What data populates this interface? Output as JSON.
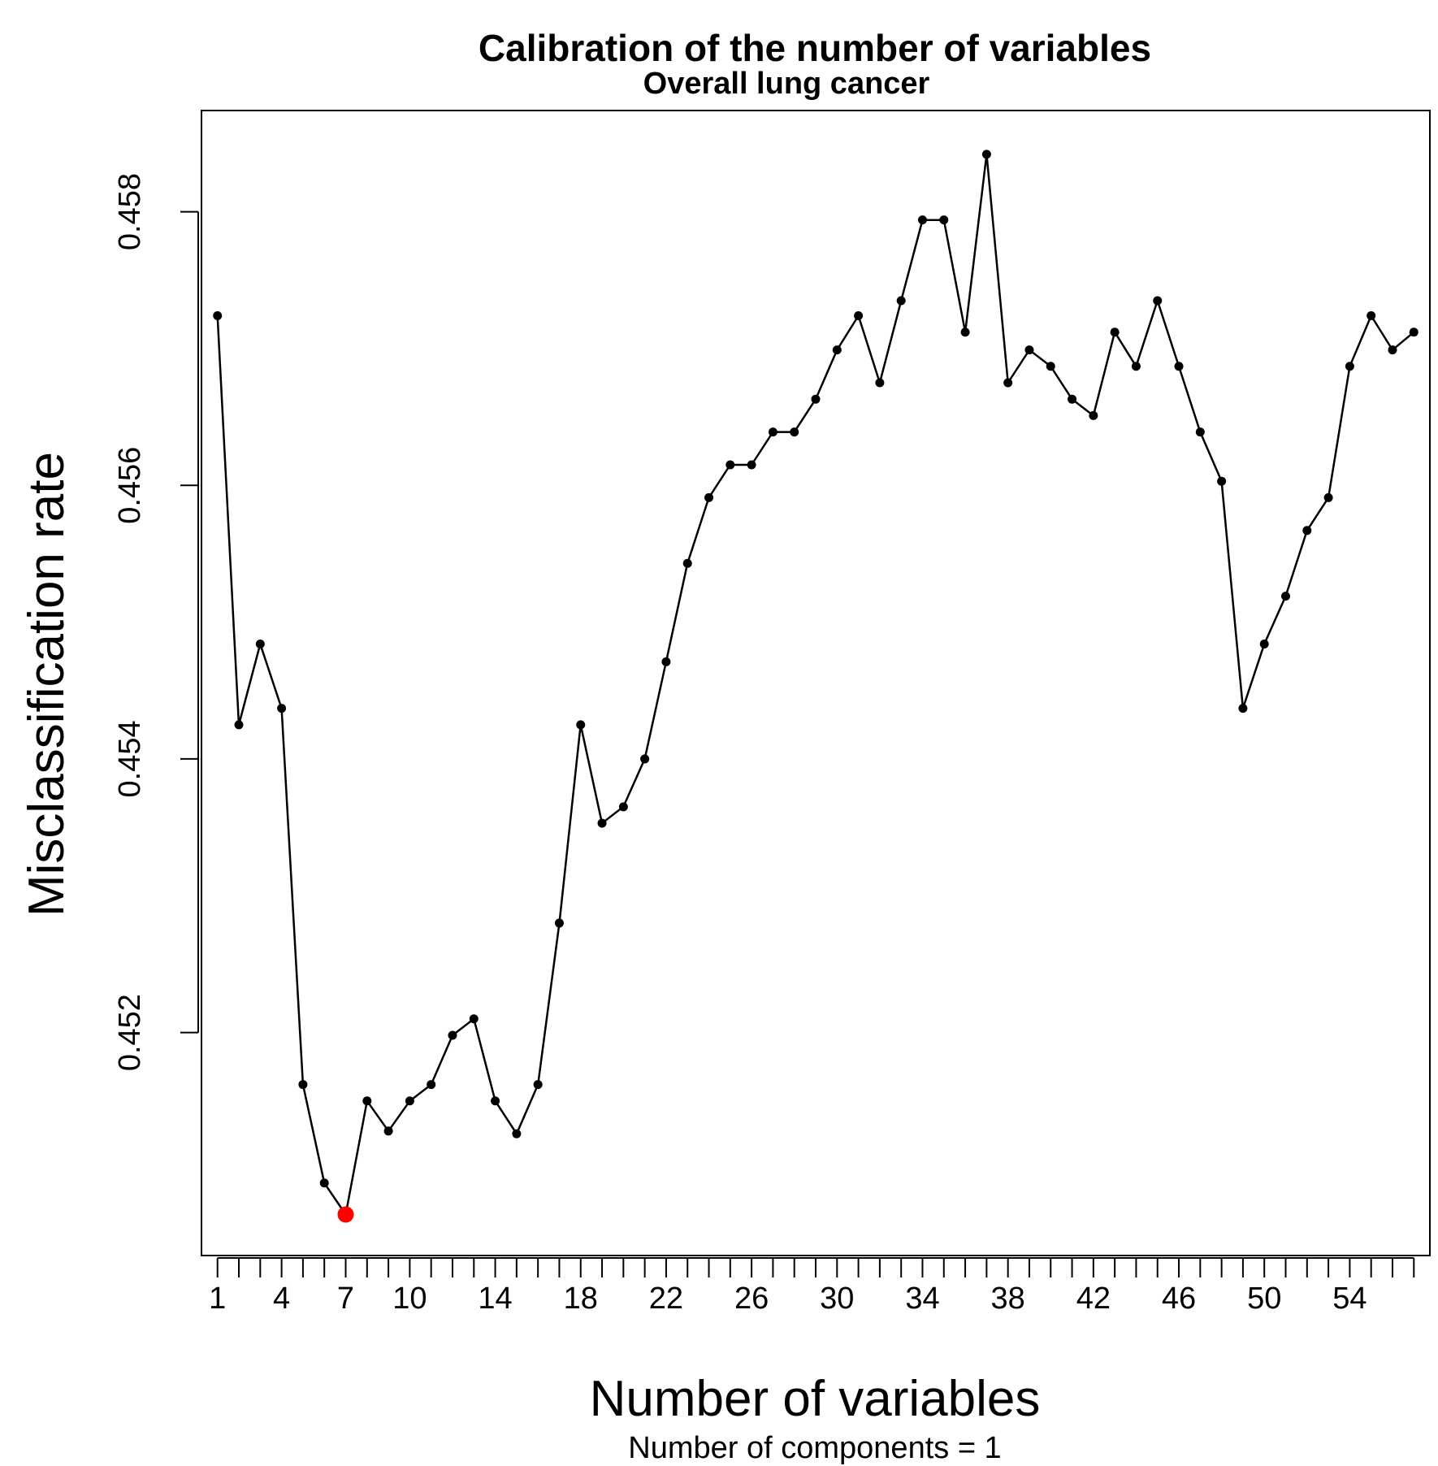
{
  "chart_data": {
    "type": "line",
    "title": "Calibration of the number of variables",
    "subtitle": "Overall lung cancer",
    "xlabel": "Number of variables",
    "x_sublabel": "Number of components = 1",
    "ylabel": "Misclassification rate",
    "xlim": [
      0.25,
      57.75
    ],
    "ylim": [
      0.45037,
      0.45874
    ],
    "x_ticks": [
      1,
      2,
      3,
      4,
      5,
      6,
      7,
      8,
      9,
      10,
      11,
      12,
      13,
      14,
      15,
      16,
      17,
      18,
      19,
      20,
      21,
      22,
      23,
      24,
      25,
      26,
      27,
      28,
      29,
      30,
      31,
      32,
      33,
      34,
      35,
      36,
      37,
      38,
      39,
      40,
      41,
      42,
      43,
      44,
      45,
      46,
      47,
      48,
      49,
      50,
      51,
      52,
      53,
      54,
      55,
      56,
      57
    ],
    "x_tick_labels": [
      1,
      4,
      7,
      10,
      14,
      18,
      22,
      26,
      30,
      34,
      38,
      42,
      46,
      50,
      54
    ],
    "y_ticks": [
      0.452,
      0.454,
      0.456,
      0.458
    ],
    "y_tick_labels": [
      "0.452",
      "0.454",
      "0.456",
      "0.458"
    ],
    "grid": false,
    "series": [
      {
        "x": [
          1,
          2,
          3,
          4,
          5,
          6,
          7,
          8,
          9,
          10,
          11,
          12,
          13,
          14,
          15,
          16,
          17,
          18,
          19,
          20,
          21,
          22,
          23,
          24,
          25,
          26,
          27,
          28,
          29,
          30,
          31,
          32,
          33,
          34,
          35,
          36,
          37,
          38,
          39,
          40,
          41,
          42,
          43,
          44,
          45,
          46,
          47,
          48,
          49,
          50,
          51,
          52,
          53,
          54,
          55,
          56,
          57
        ],
        "values": [
          0.45724,
          0.45425,
          0.45484,
          0.45437,
          0.45162,
          0.4509,
          0.45067,
          0.4515,
          0.45128,
          0.4515,
          0.45162,
          0.45198,
          0.4521,
          0.4515,
          0.45126,
          0.45162,
          0.4528,
          0.45425,
          0.45353,
          0.45365,
          0.454,
          0.45471,
          0.45543,
          0.45591,
          0.45615,
          0.45615,
          0.45639,
          0.45639,
          0.45663,
          0.45699,
          0.45724,
          0.45675,
          0.45735,
          0.45794,
          0.45794,
          0.45712,
          0.45842,
          0.45675,
          0.45699,
          0.45687,
          0.45663,
          0.45651,
          0.45712,
          0.45687,
          0.45735,
          0.45687,
          0.45639,
          0.45603,
          0.45437,
          0.45484,
          0.45519,
          0.45567,
          0.45591,
          0.45687,
          0.45724,
          0.45699,
          0.45712
        ],
        "color": "#000000"
      }
    ],
    "highlight": {
      "x": 7,
      "value": 0.45067,
      "color": "#ff0000"
    }
  }
}
